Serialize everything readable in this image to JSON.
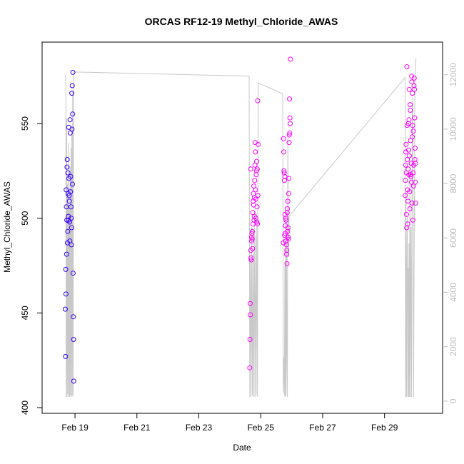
{
  "chart_data": {
    "type": "scatter",
    "title": "ORCAS RF12-19 Methyl_Chloride_AWAS",
    "xlabel": "Date",
    "ylabel": "Methyl_Chloride_AWAS",
    "x_ticks": [
      "Feb 19",
      "Feb 21",
      "Feb 23",
      "Feb 25",
      "Feb 27",
      "Feb 29"
    ],
    "xlim": [
      "2016-02-17T22:30",
      "2016-03-01T21:00"
    ],
    "ylim": [
      397,
      593
    ],
    "y_ticks": [
      400,
      450,
      500,
      550
    ],
    "y2_ticks": [
      0,
      2000,
      4000,
      6000,
      8000,
      10000,
      12000
    ],
    "y2lim": [
      -450,
      13200
    ],
    "grid": false,
    "colors": {
      "early": "#3300ff",
      "late": "#ff00ff",
      "altitude": "#c8c8c8",
      "axis": "#000000",
      "axis2": "#bdbdbd"
    },
    "series": [
      {
        "kind": "points",
        "x": [
          "2016-02-18T16:30",
          "2016-02-18T16:40",
          "2016-02-18T16:50",
          "2016-02-18T17:00",
          "2016-02-18T17:10",
          "2016-02-18T17:20",
          "2016-02-18T17:30",
          "2016-02-18T17:40",
          "2016-02-18T17:50",
          "2016-02-18T18:00",
          "2016-02-18T18:10",
          "2016-02-18T18:20",
          "2016-02-18T18:30",
          "2016-02-18T18:40",
          "2016-02-18T18:50",
          "2016-02-18T19:00",
          "2016-02-18T19:10",
          "2016-02-18T19:20",
          "2016-02-18T19:30",
          "2016-02-18T19:40",
          "2016-02-18T19:50",
          "2016-02-18T20:00",
          "2016-02-18T20:10",
          "2016-02-18T20:20",
          "2016-02-18T20:30",
          "2016-02-18T20:40",
          "2016-02-18T20:50",
          "2016-02-18T21:00",
          "2016-02-18T21:10",
          "2016-02-18T21:20",
          "2016-02-18T21:30",
          "2016-02-18T21:40",
          "2016-02-18T21:50",
          "2016-02-18T22:00",
          "2016-02-18T22:10",
          "2016-02-18T22:20",
          "2016-02-18T22:30",
          "2016-02-18T22:40",
          "2016-02-18T22:50",
          "2016-02-18T23:00"
        ],
        "y": [
          452,
          427,
          473,
          460,
          515,
          506,
          481,
          499,
          527,
          531,
          487,
          493,
          524,
          513,
          501,
          499,
          548,
          521,
          512,
          509,
          498,
          488,
          552,
          545,
          514,
          522,
          506,
          500,
          486,
          495,
          566,
          547,
          570,
          518,
          555,
          577,
          471,
          448,
          436,
          414
        ]
      },
      {
        "kind": "points",
        "x": [
          "2016-02-24T15:30",
          "2016-02-24T15:40",
          "2016-02-24T15:50",
          "2016-02-24T16:00",
          "2016-02-24T16:10",
          "2016-02-24T16:20",
          "2016-02-24T16:30",
          "2016-02-24T16:40",
          "2016-02-24T16:50",
          "2016-02-24T17:00",
          "2016-02-24T17:10",
          "2016-02-24T17:20",
          "2016-02-24T17:30",
          "2016-02-24T17:40",
          "2016-02-24T17:50",
          "2016-02-24T18:00",
          "2016-02-24T18:10",
          "2016-02-24T18:20",
          "2016-02-24T18:30",
          "2016-02-24T18:40",
          "2016-02-24T18:50",
          "2016-02-24T19:00",
          "2016-02-24T19:10",
          "2016-02-24T19:20",
          "2016-02-24T19:30",
          "2016-02-24T19:40",
          "2016-02-24T19:50",
          "2016-02-24T20:00",
          "2016-02-24T20:10",
          "2016-02-24T20:20",
          "2016-02-24T20:30",
          "2016-02-24T20:40",
          "2016-02-24T20:50",
          "2016-02-24T21:00",
          "2016-02-24T21:10",
          "2016-02-24T21:20",
          "2016-02-24T21:30",
          "2016-02-24T21:40",
          "2016-02-24T21:50",
          "2016-02-24T22:00"
        ],
        "y": [
          421,
          436,
          455,
          449,
          526,
          483,
          479,
          478,
          490,
          488,
          492,
          489,
          493,
          484,
          503,
          497,
          509,
          513,
          507,
          517,
          499,
          501,
          511,
          520,
          528,
          540,
          535,
          515,
          510,
          500,
          523,
          525,
          530,
          498,
          506,
          526,
          497,
          562,
          512,
          539
        ]
      },
      {
        "kind": "points",
        "x": [
          "2016-02-25T17:30",
          "2016-02-25T17:40",
          "2016-02-25T17:50",
          "2016-02-25T18:00",
          "2016-02-25T18:10",
          "2016-02-25T18:20",
          "2016-02-25T18:30",
          "2016-02-25T18:40",
          "2016-02-25T18:50",
          "2016-02-25T19:00",
          "2016-02-25T19:10",
          "2016-02-25T19:20",
          "2016-02-25T19:30",
          "2016-02-25T19:40",
          "2016-02-25T19:50",
          "2016-02-25T20:00",
          "2016-02-25T20:10",
          "2016-02-25T20:20",
          "2016-02-25T20:30",
          "2016-02-25T20:40",
          "2016-02-25T20:50",
          "2016-02-25T21:00",
          "2016-02-25T21:10",
          "2016-02-25T21:20",
          "2016-02-25T21:30",
          "2016-02-25T21:40",
          "2016-02-25T21:50",
          "2016-02-25T22:00",
          "2016-02-25T22:10",
          "2016-02-25T22:20",
          "2016-02-25T22:30",
          "2016-02-25T22:40",
          "2016-02-25T22:50",
          "2016-02-25T23:00"
        ],
        "y": [
          487,
          542,
          535,
          525,
          524,
          520,
          491,
          522,
          502,
          492,
          496,
          488,
          500,
          499,
          486,
          481,
          483,
          476,
          503,
          505,
          493,
          509,
          495,
          490,
          489,
          513,
          521,
          540,
          544,
          563,
          545,
          553,
          550,
          584
        ]
      },
      {
        "kind": "points",
        "x": [
          "2016-02-29T16:00",
          "2016-02-29T16:10",
          "2016-02-29T16:20",
          "2016-02-29T16:30",
          "2016-02-29T16:40",
          "2016-02-29T16:50",
          "2016-02-29T17:00",
          "2016-02-29T17:10",
          "2016-02-29T17:20",
          "2016-02-29T17:30",
          "2016-02-29T17:40",
          "2016-02-29T17:50",
          "2016-02-29T18:00",
          "2016-02-29T18:10",
          "2016-02-29T18:20",
          "2016-02-29T18:30",
          "2016-02-29T18:40",
          "2016-02-29T18:50",
          "2016-02-29T19:00",
          "2016-02-29T19:10",
          "2016-02-29T19:20",
          "2016-02-29T19:30",
          "2016-02-29T19:40",
          "2016-02-29T19:50",
          "2016-02-29T20:00",
          "2016-02-29T20:10",
          "2016-02-29T20:20",
          "2016-02-29T20:30",
          "2016-02-29T20:40",
          "2016-02-29T20:50",
          "2016-02-29T21:00",
          "2016-02-29T21:10",
          "2016-02-29T21:20",
          "2016-02-29T21:30",
          "2016-02-29T21:40",
          "2016-02-29T21:50",
          "2016-02-29T22:00",
          "2016-02-29T22:10",
          "2016-02-29T22:20",
          "2016-02-29T22:30",
          "2016-02-29T22:40",
          "2016-02-29T22:50",
          "2016-02-29T23:00",
          "2016-02-29T23:10",
          "2016-02-29T23:20",
          "2016-02-29T23:30",
          "2016-02-29T23:40",
          "2016-02-29T23:50",
          "2016-03-01T00:00",
          "2016-03-01T00:10"
        ],
        "y": [
          512,
          520,
          528,
          535,
          539,
          524,
          502,
          495,
          580,
          549,
          531,
          515,
          497,
          509,
          526,
          550,
          536,
          523,
          552,
          568,
          533,
          514,
          505,
          560,
          557,
          541,
          523,
          522,
          529,
          519,
          575,
          572,
          508,
          543,
          566,
          549,
          499,
          524,
          546,
          517,
          528,
          570,
          574,
          568,
          553,
          531,
          537,
          519,
          529,
          508
        ]
      },
      {
        "kind": "altitude",
        "x": [
          "2016-02-18T16:30",
          "2016-02-18T16:55",
          "2016-02-18T17:10",
          "2016-02-18T17:30",
          "2016-02-18T17:50",
          "2016-02-18T18:10",
          "2016-02-18T18:30",
          "2016-02-18T18:50",
          "2016-02-18T19:10",
          "2016-02-18T19:30",
          "2016-02-18T19:50",
          "2016-02-18T20:10",
          "2016-02-18T20:30",
          "2016-02-18T20:50",
          "2016-02-18T21:10",
          "2016-02-18T21:30",
          "2016-02-18T21:50",
          "2016-02-18T22:10",
          "2016-02-18T22:30",
          "2016-02-18T22:50",
          "2016-02-19T00:00",
          "2016-02-24T15:00",
          "2016-02-24T15:30",
          "2016-02-24T16:00",
          "2016-02-24T16:30",
          "2016-02-24T17:00",
          "2016-02-24T17:30",
          "2016-02-24T18:00",
          "2016-02-24T18:30",
          "2016-02-24T19:00",
          "2016-02-24T19:30",
          "2016-02-24T20:00",
          "2016-02-24T20:30",
          "2016-02-24T21:00",
          "2016-02-24T21:30",
          "2016-02-24T22:00",
          "2016-02-25T17:00",
          "2016-02-25T17:30",
          "2016-02-25T18:00",
          "2016-02-25T18:20",
          "2016-02-25T18:40",
          "2016-02-25T19:00",
          "2016-02-25T19:20",
          "2016-02-25T19:40",
          "2016-02-25T20:00",
          "2016-02-25T20:20",
          "2016-02-25T20:40",
          "2016-02-25T21:00",
          "2016-02-25T21:30",
          "2016-02-25T22:00",
          "2016-02-29T16:00",
          "2016-02-29T16:20",
          "2016-02-29T16:40",
          "2016-02-29T17:00",
          "2016-02-29T17:20",
          "2016-02-29T17:40",
          "2016-02-29T18:00",
          "2016-02-29T18:20",
          "2016-02-29T18:40",
          "2016-02-29T19:00",
          "2016-02-29T19:20",
          "2016-02-29T19:40",
          "2016-02-29T20:00",
          "2016-02-29T20:30",
          "2016-02-29T21:00",
          "2016-02-29T21:30",
          "2016-02-29T22:00",
          "2016-02-29T22:30",
          "2016-02-29T23:00",
          "2016-02-29T23:30",
          "2016-03-01T00:00",
          "2016-03-01T00:20"
        ],
        "y": [
          12000,
          11600,
          150,
          10400,
          150,
          8000,
          250,
          9500,
          150,
          7200,
          150,
          8600,
          200,
          9300,
          150,
          10100,
          200,
          11400,
          150,
          12100,
          12100,
          11950,
          150,
          5200,
          150,
          6400,
          200,
          5400,
          150,
          7000,
          150,
          6100,
          200,
          6900,
          150,
          11700,
          11300,
          300,
          1600,
          200,
          5000,
          150,
          7200,
          200,
          6100,
          1800,
          150,
          9800,
          5300,
          6800,
          11900,
          150,
          7700,
          150,
          5200,
          6800,
          150,
          4900,
          150,
          5800,
          150,
          9300,
          150,
          6400,
          150,
          10600,
          11200,
          150,
          6200,
          11800,
          12100,
          12600
        ]
      }
    ]
  }
}
